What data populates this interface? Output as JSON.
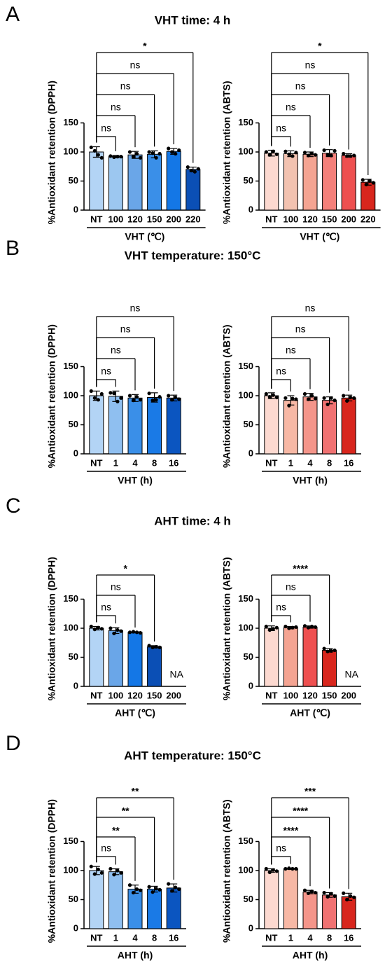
{
  "chart_data": [
    {
      "type": "bar",
      "panel": "A",
      "title": "VHT time: 4 h",
      "ylabel": "%Antioxidant retention (DPPH)",
      "xlabel": "VHT (℃)",
      "categories": [
        "NT",
        "100",
        "120",
        "150",
        "200",
        "220"
      ],
      "values": [
        100,
        92,
        95,
        96,
        101,
        70
      ],
      "errors": [
        9,
        2,
        6,
        6,
        5,
        4
      ],
      "points": [
        [
          108,
          102,
          95,
          90
        ],
        [
          93,
          91,
          92,
          92
        ],
        [
          100,
          92,
          97,
          90
        ],
        [
          100,
          98,
          90,
          97
        ],
        [
          106,
          100,
          97,
          103
        ],
        [
          74,
          68,
          66,
          71
        ]
      ],
      "colors": [
        "#b3d4f5",
        "#9cc7f0",
        "#6aa6e8",
        "#3a8fe8",
        "#1477e6",
        "#0b4fb5"
      ],
      "ylim": [
        0,
        150
      ],
      "yticks": [
        0,
        50,
        100,
        150
      ],
      "comparisons": [
        {
          "from": 0,
          "to": 1,
          "label": "ns"
        },
        {
          "from": 0,
          "to": 2,
          "label": "ns"
        },
        {
          "from": 0,
          "to": 3,
          "label": "ns"
        },
        {
          "from": 0,
          "to": 4,
          "label": "ns"
        },
        {
          "from": 0,
          "to": 5,
          "label": "*"
        }
      ]
    },
    {
      "type": "bar",
      "ylabel": "%Antioxidant retention (ABTS)",
      "xlabel": "VHT (℃)",
      "categories": [
        "NT",
        "100",
        "120",
        "150",
        "200",
        "220"
      ],
      "values": [
        98,
        97,
        96,
        98,
        94,
        48
      ],
      "errors": [
        5,
        5,
        4,
        6,
        3,
        5
      ],
      "points": [
        [
          100,
          95,
          101,
          96
        ],
        [
          101,
          96,
          93,
          99
        ],
        [
          99,
          94,
          97,
          95
        ],
        [
          103,
          95,
          94,
          102
        ],
        [
          97,
          93,
          93,
          94
        ],
        [
          52,
          44,
          50,
          47
        ]
      ],
      "colors": [
        "#fcd9d0",
        "#f2c2b0",
        "#f4a492",
        "#f4807a",
        "#ee5050",
        "#d8261d"
      ],
      "ylim": [
        0,
        150
      ],
      "yticks": [
        0,
        50,
        100,
        150
      ],
      "comparisons": [
        {
          "from": 0,
          "to": 1,
          "label": "ns"
        },
        {
          "from": 0,
          "to": 2,
          "label": "ns"
        },
        {
          "from": 0,
          "to": 3,
          "label": "ns"
        },
        {
          "from": 0,
          "to": 4,
          "label": "ns"
        },
        {
          "from": 0,
          "to": 5,
          "label": "*"
        }
      ]
    },
    {
      "type": "bar",
      "panel": "B",
      "title": "VHT temperature: 150°C",
      "ylabel": "%Antioxidant retention (DPPH)",
      "xlabel": "VHT (h)",
      "categories": [
        "NT",
        "1",
        "4",
        "8",
        "16"
      ],
      "values": [
        100,
        99,
        96,
        97,
        96
      ],
      "errors": [
        8,
        9,
        6,
        8,
        5
      ],
      "points": [
        [
          108,
          96,
          93,
          103
        ],
        [
          105,
          104,
          90,
          96
        ],
        [
          100,
          92,
          98,
          93
        ],
        [
          104,
          92,
          93,
          98
        ],
        [
          100,
          93,
          97,
          94
        ]
      ],
      "colors": [
        "#b3d4f5",
        "#8fbff0",
        "#3a8fe8",
        "#1a7ae6",
        "#0b55c0"
      ],
      "ylim": [
        0,
        150
      ],
      "yticks": [
        0,
        50,
        100,
        150
      ],
      "comparisons": [
        {
          "from": 0,
          "to": 1,
          "label": "ns"
        },
        {
          "from": 0,
          "to": 2,
          "label": "ns"
        },
        {
          "from": 0,
          "to": 3,
          "label": "ns"
        },
        {
          "from": 0,
          "to": 4,
          "label": "ns"
        }
      ]
    },
    {
      "type": "bar",
      "ylabel": "%Antioxidant retention (ABTS)",
      "xlabel": "VHT (h)",
      "categories": [
        "NT",
        "1",
        "4",
        "8",
        "16"
      ],
      "values": [
        100,
        92,
        98,
        92,
        96
      ],
      "errors": [
        5,
        8,
        6,
        6,
        5
      ],
      "points": [
        [
          103,
          98,
          101,
          97
        ],
        [
          96,
          83,
          95,
          94
        ],
        [
          103,
          94,
          100,
          95
        ],
        [
          96,
          85,
          96,
          92
        ],
        [
          100,
          91,
          97,
          96
        ]
      ],
      "colors": [
        "#fcd9d0",
        "#f7b8a5",
        "#f4958a",
        "#f07272",
        "#d8261d"
      ],
      "ylim": [
        0,
        150
      ],
      "yticks": [
        0,
        50,
        100,
        150
      ],
      "comparisons": [
        {
          "from": 0,
          "to": 1,
          "label": "ns"
        },
        {
          "from": 0,
          "to": 2,
          "label": "ns"
        },
        {
          "from": 0,
          "to": 3,
          "label": "ns"
        },
        {
          "from": 0,
          "to": 4,
          "label": "ns"
        }
      ]
    },
    {
      "type": "bar",
      "panel": "C",
      "title": "AHT time: 4 h",
      "ylabel": "%Antioxidant retention (DPPH)",
      "xlabel": "AHT (℃)",
      "categories": [
        "NT",
        "100",
        "120",
        "150",
        "200"
      ],
      "values": [
        100,
        96,
        93,
        68,
        null
      ],
      "errors": [
        3,
        5,
        1,
        2,
        null
      ],
      "points": [
        [
          103,
          98,
          101,
          99
        ],
        [
          100,
          91,
          97,
          95
        ],
        [
          93,
          94,
          93,
          92
        ],
        [
          70,
          67,
          68,
          67
        ],
        null
      ],
      "colors": [
        "#b3d4f5",
        "#6aa6e8",
        "#1477e6",
        "#0b4fb5",
        null
      ],
      "ylim": [
        0,
        150
      ],
      "yticks": [
        0,
        50,
        100,
        150
      ],
      "annotations": [
        {
          "at": 4,
          "text": "NA"
        }
      ],
      "comparisons": [
        {
          "from": 0,
          "to": 1,
          "label": "ns"
        },
        {
          "from": 0,
          "to": 2,
          "label": "ns"
        },
        {
          "from": 0,
          "to": 3,
          "label": "*"
        }
      ]
    },
    {
      "type": "bar",
      "ylabel": "%Antioxidant retention (ABTS)",
      "xlabel": "AHT (℃)",
      "categories": [
        "NT",
        "100",
        "120",
        "150",
        "200"
      ],
      "values": [
        100,
        101,
        102,
        62,
        null
      ],
      "errors": [
        4,
        2,
        2,
        3,
        null
      ],
      "points": [
        [
          103,
          97,
          99,
          101
        ],
        [
          103,
          100,
          101,
          102
        ],
        [
          104,
          101,
          103,
          102
        ],
        [
          65,
          60,
          61,
          62
        ],
        null
      ],
      "colors": [
        "#fcd9d0",
        "#f4a492",
        "#ee5050",
        "#d8261d",
        null
      ],
      "ylim": [
        0,
        150
      ],
      "yticks": [
        0,
        50,
        100,
        150
      ],
      "annotations": [
        {
          "at": 4,
          "text": "NA"
        }
      ],
      "comparisons": [
        {
          "from": 0,
          "to": 1,
          "label": "ns"
        },
        {
          "from": 0,
          "to": 2,
          "label": "ns"
        },
        {
          "from": 0,
          "to": 3,
          "label": "****"
        }
      ]
    },
    {
      "type": "bar",
      "panel": "D",
      "title": "AHT temperature: 150°C",
      "ylabel": "%Antioxidant retention (DPPH)",
      "xlabel": "AHT (h)",
      "categories": [
        "NT",
        "1",
        "4",
        "8",
        "16"
      ],
      "values": [
        100,
        98,
        68,
        68,
        70
      ],
      "errors": [
        7,
        5,
        7,
        5,
        7
      ],
      "points": [
        [
          107,
          94,
          102,
          96
        ],
        [
          103,
          93,
          100,
          96
        ],
        [
          75,
          62,
          68,
          66
        ],
        [
          72,
          63,
          69,
          67
        ],
        [
          77,
          65,
          71,
          68
        ]
      ],
      "colors": [
        "#b3d4f5",
        "#8fbff0",
        "#3a8fe8",
        "#1a7ae6",
        "#0b55c0"
      ],
      "ylim": [
        0,
        150
      ],
      "yticks": [
        0,
        50,
        100,
        150
      ],
      "comparisons": [
        {
          "from": 0,
          "to": 1,
          "label": "ns"
        },
        {
          "from": 0,
          "to": 2,
          "label": "**"
        },
        {
          "from": 0,
          "to": 3,
          "label": "**"
        },
        {
          "from": 0,
          "to": 4,
          "label": "**"
        }
      ]
    },
    {
      "type": "bar",
      "ylabel": "%Antioxidant retention (ABTS)",
      "xlabel": "AHT (h)",
      "categories": [
        "NT",
        "1",
        "4",
        "8",
        "16"
      ],
      "values": [
        100,
        103,
        63,
        58,
        55
      ],
      "errors": [
        3,
        1,
        3,
        4,
        6
      ],
      "points": [
        [
          103,
          97,
          101,
          99
        ],
        [
          103,
          104,
          103,
          103
        ],
        [
          66,
          61,
          64,
          62
        ],
        [
          62,
          55,
          60,
          56
        ],
        [
          61,
          50,
          56,
          54
        ]
      ],
      "colors": [
        "#fcd9d0",
        "#f7b8a5",
        "#f4958a",
        "#f07272",
        "#d8261d"
      ],
      "ylim": [
        0,
        150
      ],
      "yticks": [
        0,
        50,
        100,
        150
      ],
      "comparisons": [
        {
          "from": 0,
          "to": 1,
          "label": "ns"
        },
        {
          "from": 0,
          "to": 2,
          "label": "****"
        },
        {
          "from": 0,
          "to": 3,
          "label": "****"
        },
        {
          "from": 0,
          "to": 4,
          "label": "***"
        }
      ]
    }
  ]
}
